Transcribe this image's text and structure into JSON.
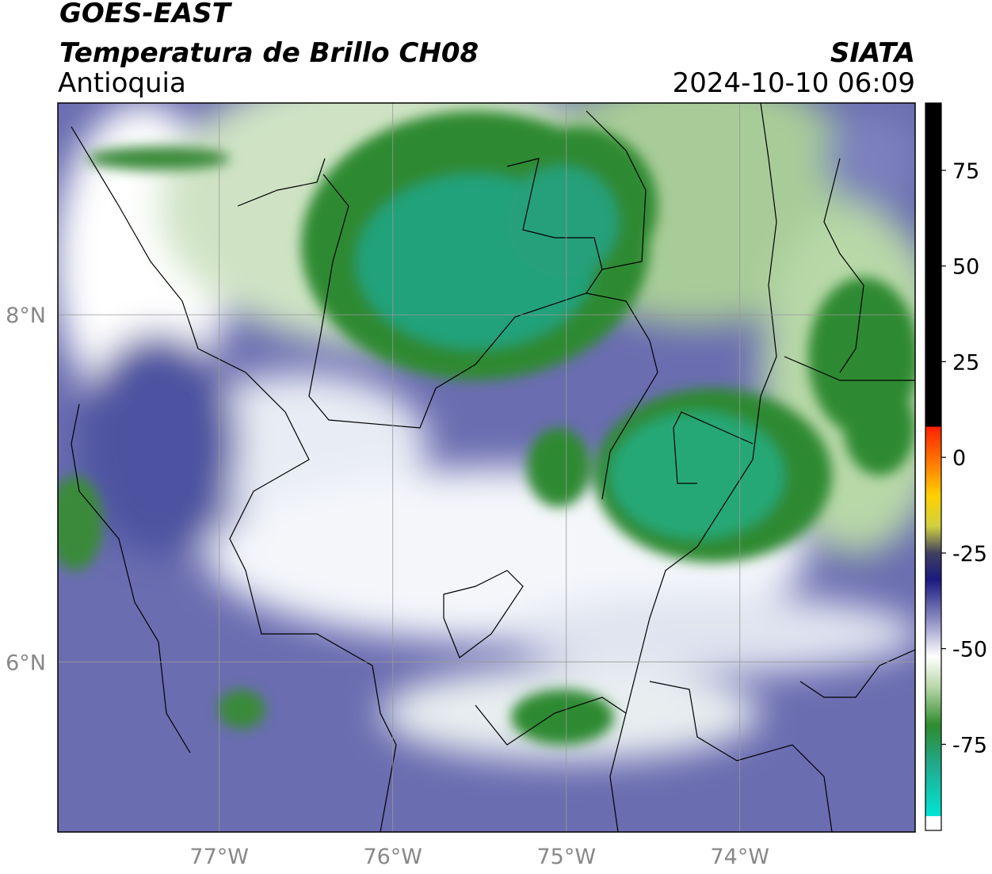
{
  "header": {
    "title": "GOES-EAST",
    "subtitle": "Temperatura de Brillo CH08",
    "region": "Antioquia",
    "source": "SIATA",
    "timestamp": "2024-10-10 06:09"
  },
  "map": {
    "xlim": [
      -77.93,
      -72.99
    ],
    "ylim": [
      5.02,
      9.22
    ],
    "xticks": [
      {
        "value": -77,
        "label": "77°W"
      },
      {
        "value": -76,
        "label": "76°W"
      },
      {
        "value": -75,
        "label": "75°W"
      },
      {
        "value": -74,
        "label": "74°W"
      }
    ],
    "yticks": [
      {
        "value": 6,
        "label": "6°N"
      },
      {
        "value": 8,
        "label": "8°N"
      }
    ],
    "grid": true
  },
  "colorbar": {
    "lim": [
      -97.5,
      92.6
    ],
    "ticks": [
      75,
      50,
      25,
      0,
      -25,
      -50,
      -75
    ],
    "colormap": [
      [
        -97.5,
        "#ffffff"
      ],
      [
        -93.8,
        "#ffffff"
      ],
      [
        -93.8,
        "#00e5d5"
      ],
      [
        -80,
        "#22a88a"
      ],
      [
        -70,
        "#2e8b2e"
      ],
      [
        -60,
        "#b8d8a8"
      ],
      [
        -52,
        "#ffffff"
      ],
      [
        -42,
        "#8888c0"
      ],
      [
        -32,
        "#1a1a80"
      ],
      [
        -25,
        "#404060"
      ],
      [
        -18,
        "#d0d040"
      ],
      [
        -10,
        "#ffd000"
      ],
      [
        -2,
        "#ff8000"
      ],
      [
        8,
        "#ff2000"
      ],
      [
        8,
        "#000000"
      ],
      [
        92.6,
        "#000000"
      ]
    ]
  }
}
